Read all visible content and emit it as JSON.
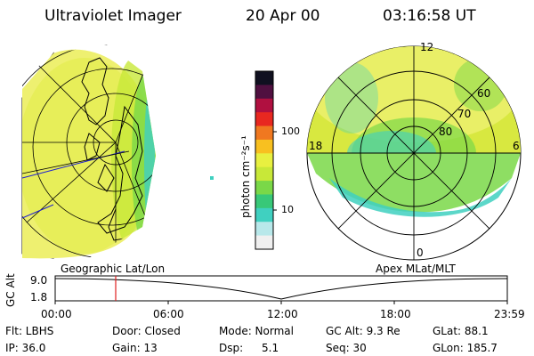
{
  "header": {
    "instrument": "Ultraviolet Imager",
    "date": "20 Apr 00",
    "time": "03:16:58 UT"
  },
  "colorbar": {
    "unit_label": "photon cm⁻²s⁻¹",
    "ticks": [
      "100",
      "10"
    ],
    "colors": [
      "#f0f0f0",
      "#b8e8ea",
      "#40d0c0",
      "#38c878",
      "#7ad848",
      "#c8e838",
      "#e8f040",
      "#f8c020",
      "#f07820",
      "#e82820",
      "#b01040",
      "#501040",
      "#101020"
    ]
  },
  "left_panel": {
    "label": "Geographic Lat/Lon"
  },
  "right_panel": {
    "label": "Apex MLat/MLT",
    "mlt_labels": {
      "top": "12",
      "left": "18",
      "right": "6",
      "bottom": "0"
    },
    "lat_labels": [
      "60",
      "70",
      "80"
    ]
  },
  "altitude_plot": {
    "ylabel": "GC Alt",
    "yticks": [
      "9.0",
      "1.8"
    ],
    "xticks": [
      "00:00",
      "06:00",
      "12:00",
      "18:00",
      "23:59"
    ],
    "marker_color": "#e02020"
  },
  "status": {
    "flt": "Flt: LBHS",
    "door": "Door: Closed",
    "mode": "Mode: Normal",
    "gc_alt": "GC Alt: 9.3 Re",
    "glat": "GLat: 88.1",
    "ip": "IP: 36.0",
    "gain": "Gain: 13",
    "dsp_label": "Dsp:",
    "dsp_value": "5.1",
    "seq": "Seq: 30",
    "glon": "GLon: 185.7"
  }
}
